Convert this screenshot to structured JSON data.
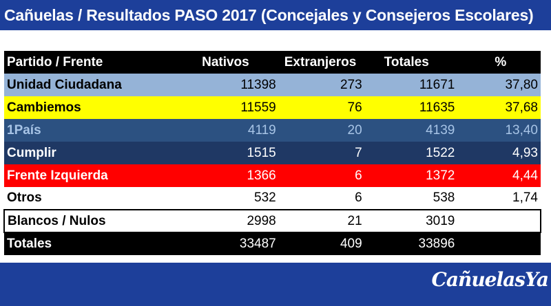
{
  "title": "Cañuelas / Resultados PASO 2017 (Concejales y Consejeros Escolares)",
  "table": {
    "headers": [
      "Partido / Frente",
      "Nativos",
      "Extranjeros",
      "Totales",
      "%"
    ],
    "rows": [
      {
        "partido": "Unidad Ciudadana",
        "nativos": "11398",
        "extranjeros": "273",
        "totales": "11671",
        "pct": "37,80",
        "bg": "#95b3d7"
      },
      {
        "partido": "Cambiemos",
        "nativos": "11559",
        "extranjeros": "76",
        "totales": "11635",
        "pct": "37,68",
        "bg": "#ffff00"
      },
      {
        "partido": "1País",
        "nativos": "4119",
        "extranjeros": "20",
        "totales": "4139",
        "pct": "13,40",
        "bg": "#2c5181"
      },
      {
        "partido": "Cumplir",
        "nativos": "1515",
        "extranjeros": "7",
        "totales": "1522",
        "pct": "4,93",
        "bg": "#1f3864"
      },
      {
        "partido": "Frente Izquierda",
        "nativos": "1366",
        "extranjeros": "6",
        "totales": "1372",
        "pct": "4,44",
        "bg": "#ff0000"
      },
      {
        "partido": "Otros",
        "nativos": "532",
        "extranjeros": "6",
        "totales": "538",
        "pct": "1,74",
        "bg": "#ffffff"
      },
      {
        "partido": "Blancos / Nulos",
        "nativos": "2998",
        "extranjeros": "21",
        "totales": "3019",
        "pct": "",
        "bg": "#ffffff"
      },
      {
        "partido": "Totales",
        "nativos": "33487",
        "extranjeros": "409",
        "totales": "33896",
        "pct": "",
        "bg": "#000000"
      }
    ]
  },
  "logo": "CañuelasYa",
  "colors": {
    "brand_blue": "#1d3f9a"
  }
}
